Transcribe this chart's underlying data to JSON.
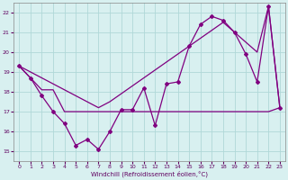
{
  "xlabel": "Windchill (Refroidissement éolien,°C)",
  "background_color": "#d8f0f0",
  "grid_color": "#b0d8d8",
  "line_color": "#800080",
  "xlim": [
    -0.5,
    23.5
  ],
  "ylim": [
    14.5,
    22.5
  ],
  "yticks": [
    15,
    16,
    17,
    18,
    19,
    20,
    21,
    22
  ],
  "xticks": [
    0,
    1,
    2,
    3,
    4,
    5,
    6,
    7,
    8,
    9,
    10,
    11,
    12,
    13,
    14,
    15,
    16,
    17,
    18,
    19,
    20,
    21,
    22,
    23
  ],
  "line1_x": [
    0,
    1,
    2,
    3,
    4,
    5,
    6,
    7,
    8,
    9,
    10,
    11,
    12,
    13,
    14,
    15,
    16,
    17,
    18,
    19,
    20,
    21,
    22,
    23
  ],
  "line1_y": [
    19.3,
    19.0,
    18.7,
    18.4,
    18.1,
    17.8,
    17.5,
    17.2,
    17.5,
    17.9,
    18.3,
    18.7,
    19.1,
    19.5,
    19.9,
    20.3,
    20.7,
    21.1,
    21.5,
    21.0,
    20.5,
    20.0,
    22.3,
    17.2
  ],
  "line2_x": [
    0,
    1,
    2,
    3,
    4,
    5,
    6,
    7,
    8,
    9,
    10,
    11,
    12,
    13,
    14,
    15,
    16,
    17,
    18,
    19,
    20,
    21,
    22,
    23
  ],
  "line2_y": [
    19.3,
    18.7,
    18.1,
    18.1,
    17.0,
    17.0,
    17.0,
    17.0,
    17.0,
    17.0,
    17.0,
    17.0,
    17.0,
    17.0,
    17.0,
    17.0,
    17.0,
    17.0,
    17.0,
    17.0,
    17.0,
    17.0,
    17.0,
    17.2
  ],
  "line3_x": [
    0,
    1,
    2,
    3,
    4,
    5,
    6,
    7,
    8,
    9,
    10,
    11,
    12,
    13,
    14,
    15,
    16,
    17,
    18,
    19,
    20,
    21,
    22,
    23
  ],
  "line3_y": [
    19.3,
    18.7,
    17.8,
    17.0,
    16.4,
    15.3,
    15.6,
    15.1,
    16.0,
    17.1,
    17.1,
    18.2,
    16.3,
    18.4,
    18.5,
    20.3,
    21.4,
    21.8,
    21.6,
    21.0,
    19.9,
    18.5,
    22.3,
    17.2
  ]
}
